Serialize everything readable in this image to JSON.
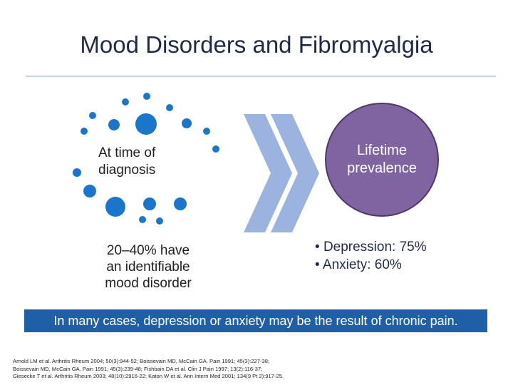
{
  "title": "Mood Disorders and Fibromyalgia",
  "left_label": [
    "At time of",
    "diagnosis"
  ],
  "circle_label": [
    "Lifetime",
    "prevalence"
  ],
  "left_stat": [
    "20–40% have",
    "an identifiable",
    "mood disorder"
  ],
  "bullets": [
    "Depression: 75%",
    "Anxiety: 60%"
  ],
  "banner": "In many cases, depression or anxiety may be the result of chronic pain.",
  "references": [
    "Arnold LM et al. Arthritis Rheum 2004; 50(3):944-52; Boissevain MD, McCain GA. Pain 1991; 45(3):227-38;",
    "Boissevain MD, McCain GA. Pain 1991; 45(3):239-48; Fishbain DA et al. Clin J Pain 1997; 13(2):116-37;",
    "Giesecke T et al. Arthritis Rheum 2003; 48(10):2916-22; Katon W et al. Ann Intern Med 2001; 134(9 Pt 2):917-25."
  ],
  "colors": {
    "dot": "#1b75c9",
    "chevron": "#9cb3e0",
    "circle": "#8064a2",
    "banner": "#1e5fa8"
  }
}
